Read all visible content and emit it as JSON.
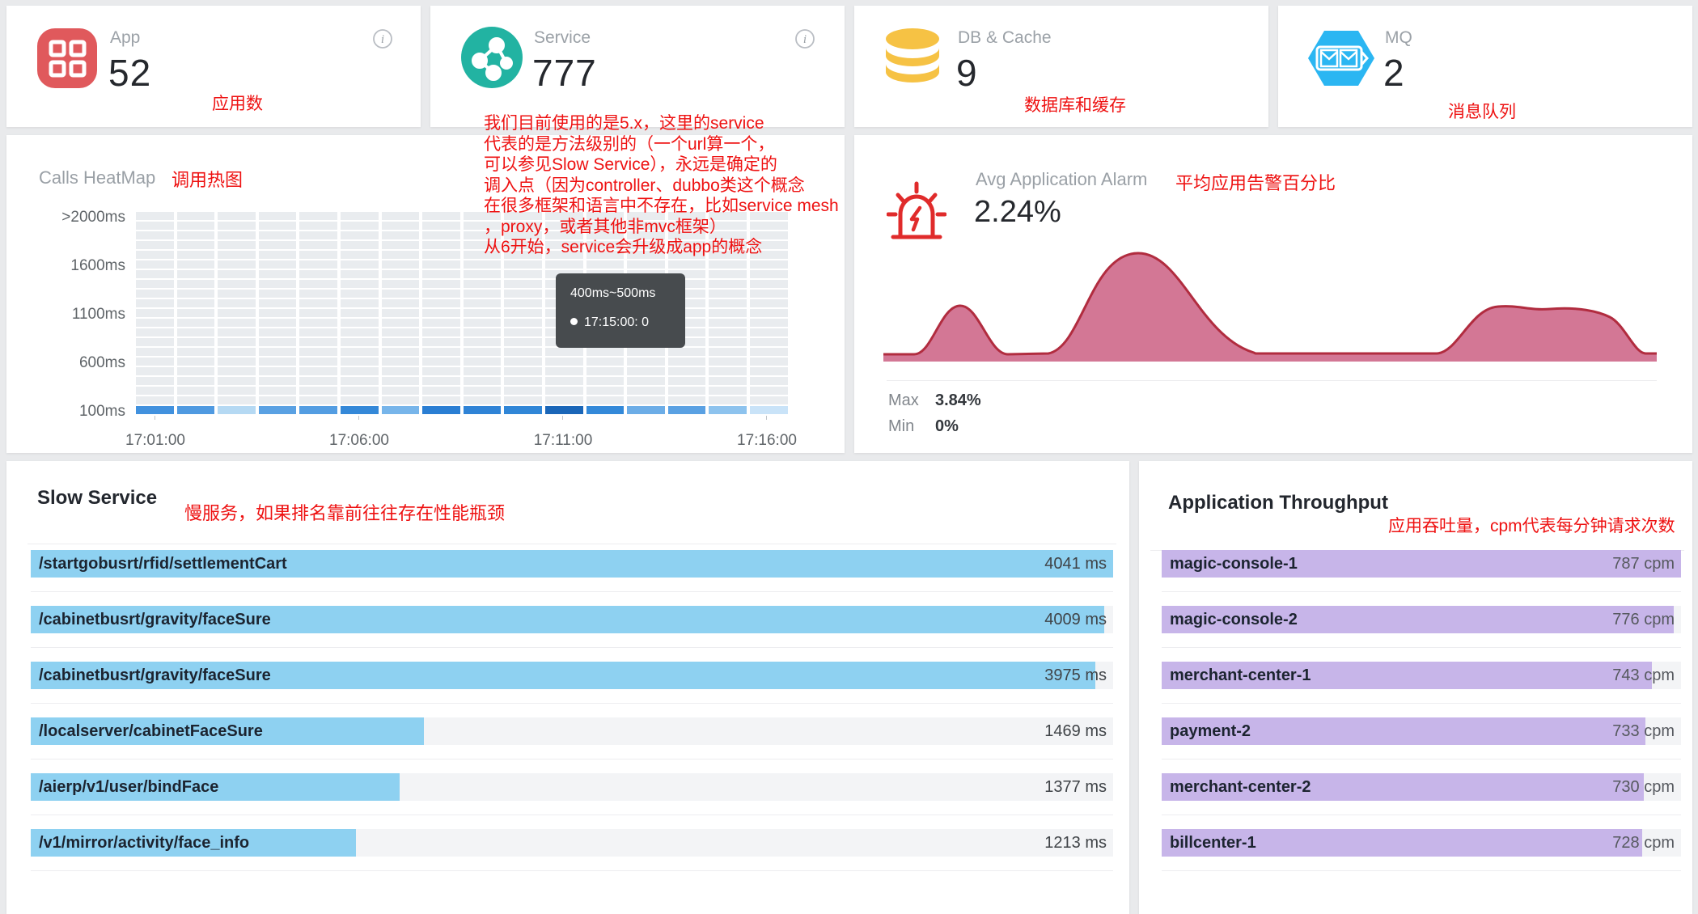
{
  "page": {
    "background": "#e9eaec"
  },
  "stat_cards": [
    {
      "label": "App",
      "value": "52",
      "icon": "app-grid-icon",
      "icon_color": "#e0595c",
      "annotation": "应用数"
    },
    {
      "label": "Service",
      "value": "777",
      "icon": "service-network-icon",
      "icon_color": "#22b3a2",
      "annotation": "我们目前使用的是5.x，这里的service\n代表的是方法级别的（一个url算一个，\n可以参见Slow Service），永远是确定的\n调入点（因为controller、dubbo类这个概念\n在很多框架和语言中不存在，比如service mesh\n，proxy，或者其他非mvc框架）\n从6开始，service会升级成app的概念"
    },
    {
      "label": "DB & Cache",
      "value": "9",
      "icon": "database-icon",
      "icon_color": "#f6c244",
      "annotation": "数据库和缓存"
    },
    {
      "label": "MQ",
      "value": "2",
      "icon": "mq-hexagon-icon",
      "icon_color": "#2bb6f2",
      "annotation": "消息队列"
    }
  ],
  "annotation_color": "#ee1111",
  "heatmap": {
    "title": "Calls HeatMap",
    "annotation": "调用热图",
    "y_labels": [
      ">2000ms",
      "1600ms",
      "1100ms",
      "600ms",
      "100ms"
    ],
    "x_labels": [
      "17:01:00",
      "17:06:00",
      "17:11:00",
      "17:16:00"
    ],
    "rows": 21,
    "cols": 16,
    "cell_color": "#e9ecef",
    "bottom_row_colors": [
      "#4191de",
      "#4f9ae1",
      "#b5d9f3",
      "#5aa1e3",
      "#539de2",
      "#3488d8",
      "#77b5ea",
      "#2a7ed3",
      "#2f83d6",
      "#3086d7",
      "#1a66b8",
      "#3389d9",
      "#6cade7",
      "#5aa1e3",
      "#8dc3ee",
      "#c9e3f8"
    ],
    "tooltip": {
      "range": "400ms~500ms",
      "entry": "17:15:00: 0"
    }
  },
  "alarm": {
    "title": "Avg Application Alarm",
    "annotation": "平均应用告警百分比",
    "value": "2.24%",
    "max_label": "Max",
    "max_value": "3.84%",
    "min_label": "Min",
    "min_value": "0%",
    "fill_color": "#d37795",
    "stroke_color": "#b12c3f"
  },
  "slow_service": {
    "title": "Slow Service",
    "annotation": "慢服务，如果排名靠前往往存在性能瓶颈",
    "bar_color": "#8ed1f1",
    "unit": "ms",
    "items": [
      {
        "label": "/startgobusrt/rfid/settlementCart",
        "value": 4041,
        "display": "4041 ms"
      },
      {
        "label": "/cabinetbusrt/gravity/faceSure",
        "value": 4009,
        "display": "4009 ms"
      },
      {
        "label": "/cabinetbusrt/gravity/faceSure",
        "value": 3975,
        "display": "3975 ms"
      },
      {
        "label": "/localserver/cabinetFaceSure",
        "value": 1469,
        "display": "1469 ms"
      },
      {
        "label": "/aierp/v1/user/bindFace",
        "value": 1377,
        "display": "1377 ms"
      },
      {
        "label": "/v1/mirror/activity/face_info",
        "value": 1213,
        "display": "1213 ms"
      }
    ]
  },
  "throughput": {
    "title": "Application Throughput",
    "annotation": "应用吞吐量，cpm代表每分钟请求次数",
    "bar_color": "#c7b5e9",
    "unit": "cpm",
    "items": [
      {
        "label": "magic-console-1",
        "value": 787,
        "display": "787 cpm"
      },
      {
        "label": "magic-console-2",
        "value": 776,
        "display": "776 cpm"
      },
      {
        "label": "merchant-center-1",
        "value": 743,
        "display": "743 cpm"
      },
      {
        "label": "payment-2",
        "value": 733,
        "display": "733 cpm"
      },
      {
        "label": "merchant-center-2",
        "value": 730,
        "display": "730 cpm"
      },
      {
        "label": "billcenter-1",
        "value": 728,
        "display": "728 cpm"
      }
    ]
  },
  "chart_data": [
    {
      "type": "heatmap",
      "title": "Calls HeatMap",
      "x": [
        "17:01:00",
        "17:06:00",
        "17:11:00",
        "17:16:00"
      ],
      "y": [
        ">2000ms",
        "1600ms",
        "1100ms",
        "600ms",
        "100ms"
      ],
      "note": "only the 100ms row shows activity (blue cells); hovered cell 17:15:00 in bucket 400ms~500ms has value 0"
    },
    {
      "type": "area",
      "title": "Avg Application Alarm",
      "avg": "2.24%",
      "max": "3.84%",
      "min": "0%",
      "shape": "two humps (small then tall peak) followed by flat zero and a broad plateau on the right"
    },
    {
      "type": "bar",
      "title": "Slow Service",
      "categories": [
        "/startgobusrt/rfid/settlementCart",
        "/cabinetbusrt/gravity/faceSure",
        "/cabinetbusrt/gravity/faceSure",
        "/localserver/cabinetFaceSure",
        "/aierp/v1/user/bindFace",
        "/v1/mirror/activity/face_info"
      ],
      "values": [
        4041,
        4009,
        3975,
        1469,
        1377,
        1213
      ],
      "ylabel": "ms"
    },
    {
      "type": "bar",
      "title": "Application Throughput",
      "categories": [
        "magic-console-1",
        "magic-console-2",
        "merchant-center-1",
        "payment-2",
        "merchant-center-2",
        "billcenter-1"
      ],
      "values": [
        787,
        776,
        743,
        733,
        730,
        728
      ],
      "ylabel": "cpm"
    }
  ]
}
